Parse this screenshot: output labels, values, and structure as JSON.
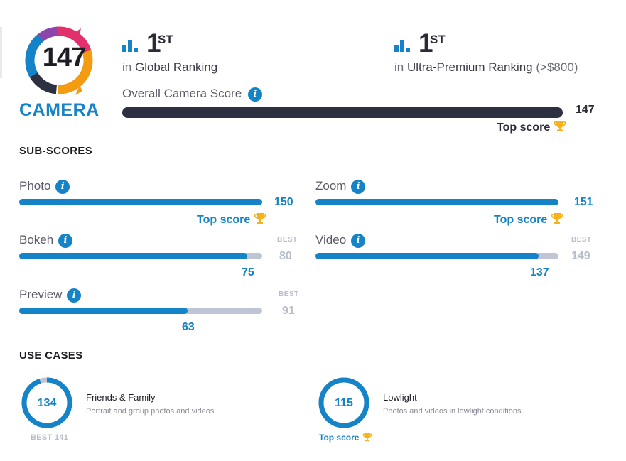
{
  "badge": {
    "score": "147",
    "label": "CAMERA",
    "colors": [
      "#1583c7",
      "#e2306c",
      "#f39c12",
      "#8e44ad",
      "#2c3040"
    ]
  },
  "rankings": [
    {
      "rank": "1",
      "suffix": "ST",
      "prefix": "in",
      "link": "Global Ranking",
      "extra": ""
    },
    {
      "rank": "1",
      "suffix": "ST",
      "prefix": "in",
      "link": "Ultra-Premium Ranking",
      "extra": "(>$800)"
    }
  ],
  "overall": {
    "label": "Overall Camera Score",
    "value": "147",
    "fraction": 1.0,
    "top_score_label": "Top score"
  },
  "sub_scores": {
    "title": "SUB-SCORES",
    "items": [
      {
        "label": "Photo",
        "value": "150",
        "fraction": 1.0,
        "top_score_label": "Top score"
      },
      {
        "label": "Zoom",
        "value": "151",
        "fraction": 1.0,
        "top_score_label": "Top score"
      },
      {
        "label": "Bokeh",
        "value": "75",
        "best_caption": "BEST",
        "best": "80",
        "fraction": 0.9375
      },
      {
        "label": "Video",
        "value": "137",
        "best_caption": "BEST",
        "best": "149",
        "fraction": 0.9195
      },
      {
        "label": "Preview",
        "value": "63",
        "best_caption": "BEST",
        "best": "91",
        "fraction": 0.6923
      }
    ]
  },
  "use_cases": {
    "title": "USE CASES",
    "items": [
      {
        "score": "134",
        "title": "Friends & Family",
        "description": "Portrait and group photos and videos",
        "best_label": "BEST 141",
        "fraction": 0.9504
      },
      {
        "score": "115",
        "title": "Lowlight",
        "description": "Photos and videos in lowlight conditions",
        "top_score_label": "Top score",
        "fraction": 1.0
      }
    ]
  },
  "colors": {
    "accent": "#1583c7",
    "dark": "#2c3040",
    "track": "#c0c5d6",
    "muted": "#b8bdcc",
    "trophy": "#f5b21b"
  }
}
